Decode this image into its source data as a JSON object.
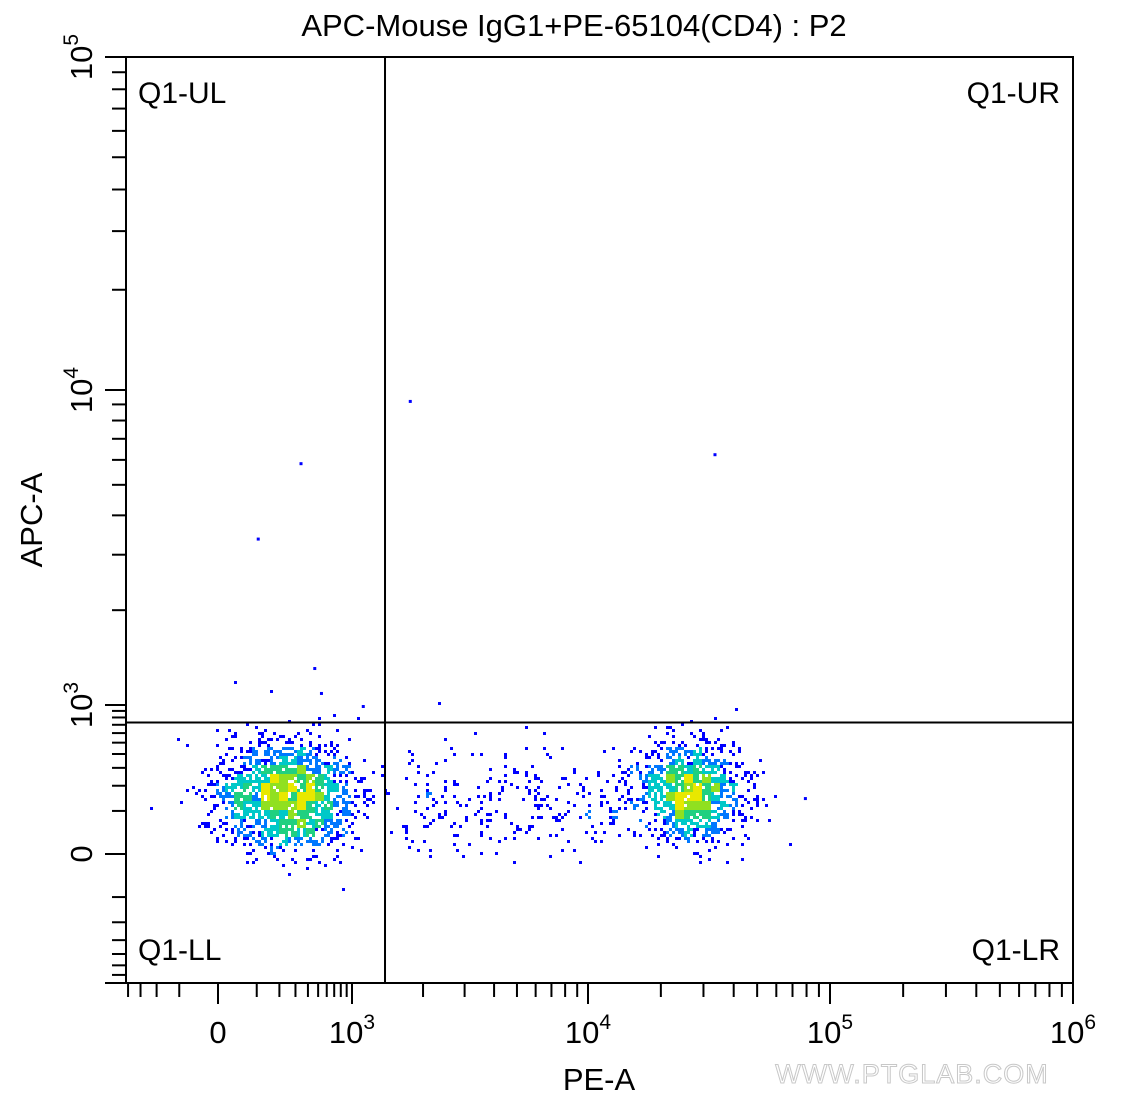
{
  "chart_data": {
    "type": "scatter",
    "subtype": "flow-cytometry-density-dot-plot",
    "title": "APC-Mouse IgG1+PE-65104(CD4) : P2",
    "xlabel": "PE-A",
    "ylabel": "APC-A",
    "x_scale": "biexponential",
    "y_scale": "biexponential",
    "xlim": [
      -420,
      1000000
    ],
    "ylim": [
      -700,
      100000
    ],
    "x_ticks": [
      {
        "value": 0,
        "label": "0",
        "sup": ""
      },
      {
        "value": 1000,
        "label": "10",
        "sup": "3"
      },
      {
        "value": 10000,
        "label": "10",
        "sup": "4"
      },
      {
        "value": 100000,
        "label": "10",
        "sup": "5"
      },
      {
        "value": 1000000,
        "label": "10",
        "sup": "6"
      }
    ],
    "y_ticks": [
      {
        "value": 0,
        "label": "0",
        "sup": ""
      },
      {
        "value": 1000,
        "label": "10",
        "sup": "3"
      },
      {
        "value": 10000,
        "label": "10",
        "sup": "4"
      },
      {
        "value": 100000,
        "label": "10",
        "sup": "5"
      }
    ],
    "grid": false,
    "quadrant_gate": {
      "x": 1380,
      "y": 730
    },
    "quadrant_labels": {
      "ul": "Q1-UL",
      "ur": "Q1-UR",
      "ll": "Q1-LL",
      "lr": "Q1-LR"
    },
    "populations": [
      {
        "quadrant": "Q1-LL",
        "center_x": 240,
        "center_y": 160,
        "events": 1800
      },
      {
        "quadrant": "Q1-LR",
        "center_x": 26000,
        "center_y": 180,
        "events": 1200
      },
      {
        "quadrant": "Q1-LR",
        "center_x": 4000,
        "center_y": 150,
        "events": 260
      }
    ],
    "outliers": [
      {
        "x": 330,
        "y": 5900
      },
      {
        "x": 100,
        "y": 3400
      },
      {
        "x": 1740,
        "y": 9300
      },
      {
        "x": 33000,
        "y": 6300
      },
      {
        "x": 450,
        "y": 1320
      },
      {
        "x": 1100,
        "y": 1000
      },
      {
        "x": 520,
        "y": 1100
      },
      {
        "x": 78000,
        "y": 150
      }
    ],
    "density_colors": [
      "#0000ff",
      "#0078ff",
      "#00c8c8",
      "#20d080",
      "#90e020",
      "#e8e800"
    ]
  },
  "watermark": "WWW.PTGLAB.COM"
}
